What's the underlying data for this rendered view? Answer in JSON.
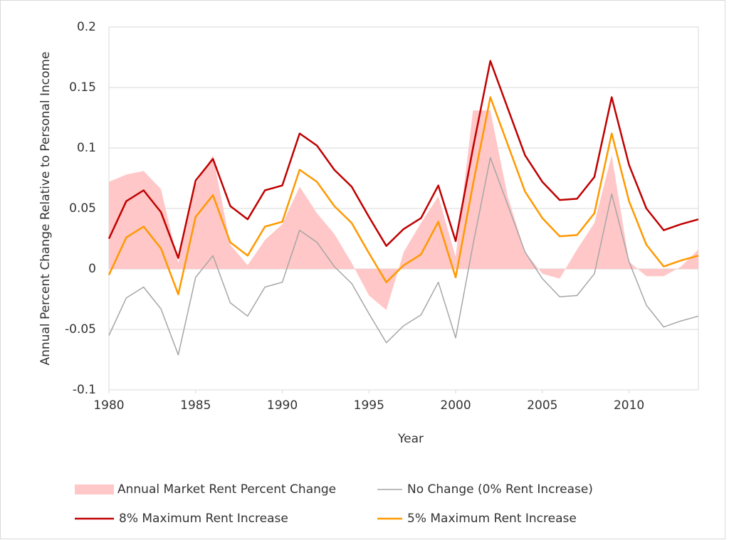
{
  "chart_data": {
    "type": "line",
    "xlabel": "Year",
    "ylabel": "Annual Percent Change Relative to Personal Income",
    "x": [
      1980,
      1981,
      1982,
      1983,
      1984,
      1985,
      1986,
      1987,
      1988,
      1989,
      1990,
      1991,
      1992,
      1993,
      1994,
      1995,
      1996,
      1997,
      1998,
      1999,
      2000,
      2001,
      2002,
      2003,
      2004,
      2005,
      2006,
      2007,
      2008,
      2009,
      2010,
      2011,
      2012,
      2013,
      2014
    ],
    "xlim": [
      1980,
      2014
    ],
    "xticks": [
      1980,
      1985,
      1990,
      1995,
      2000,
      2005,
      2010
    ],
    "ylim": [
      -0.1,
      0.2
    ],
    "yticks": [
      0.2,
      0.15,
      0.1,
      0.05,
      0,
      -0.05,
      -0.1
    ],
    "grid": true,
    "legend": "bottom",
    "series": [
      {
        "name": "Annual Market Rent Percent Change",
        "type": "area",
        "color": "#ffc7c7",
        "values": [
          0.072,
          0.078,
          0.081,
          0.066,
          0.005,
          0.07,
          0.094,
          0.02,
          0.003,
          0.024,
          0.037,
          0.068,
          0.046,
          0.029,
          0.005,
          -0.022,
          -0.034,
          0.014,
          0.038,
          0.06,
          0.01,
          0.131,
          0.131,
          0.06,
          0.014,
          -0.004,
          -0.008,
          0.016,
          0.038,
          0.094,
          0.006,
          -0.006,
          -0.006,
          0.002,
          0.016
        ]
      },
      {
        "name": "No Change (0% Rent Increase)",
        "type": "line",
        "color": "#a6a6a6",
        "values": [
          -0.055,
          -0.024,
          -0.015,
          -0.033,
          -0.071,
          -0.007,
          0.011,
          -0.028,
          -0.039,
          -0.015,
          -0.011,
          0.032,
          0.022,
          0.002,
          -0.012,
          -0.037,
          -0.061,
          -0.047,
          -0.038,
          -0.011,
          -0.057,
          0.02,
          0.092,
          0.053,
          0.014,
          -0.008,
          -0.023,
          -0.022,
          -0.004,
          0.062,
          0.006,
          -0.03,
          -0.048,
          -0.043,
          -0.039
        ]
      },
      {
        "name": "8% Maximum Rent Increase",
        "type": "line",
        "color": "#c00000",
        "values": [
          0.025,
          0.056,
          0.065,
          0.047,
          0.009,
          0.073,
          0.091,
          0.052,
          0.041,
          0.065,
          0.069,
          0.112,
          0.102,
          0.082,
          0.068,
          0.043,
          0.019,
          0.033,
          0.042,
          0.069,
          0.023,
          0.1,
          0.172,
          0.133,
          0.094,
          0.072,
          0.057,
          0.058,
          0.076,
          0.142,
          0.086,
          0.05,
          0.032,
          0.037,
          0.041
        ]
      },
      {
        "name": "5% Maximum Rent Increase",
        "type": "line",
        "color": "#ff9900",
        "values": [
          -0.005,
          0.026,
          0.035,
          0.017,
          -0.021,
          0.043,
          0.061,
          0.022,
          0.011,
          0.035,
          0.039,
          0.082,
          0.072,
          0.052,
          0.038,
          0.013,
          -0.011,
          0.003,
          0.012,
          0.039,
          -0.007,
          0.07,
          0.142,
          0.103,
          0.064,
          0.042,
          0.027,
          0.028,
          0.046,
          0.112,
          0.056,
          0.02,
          0.002,
          0.007,
          0.011
        ]
      }
    ]
  }
}
